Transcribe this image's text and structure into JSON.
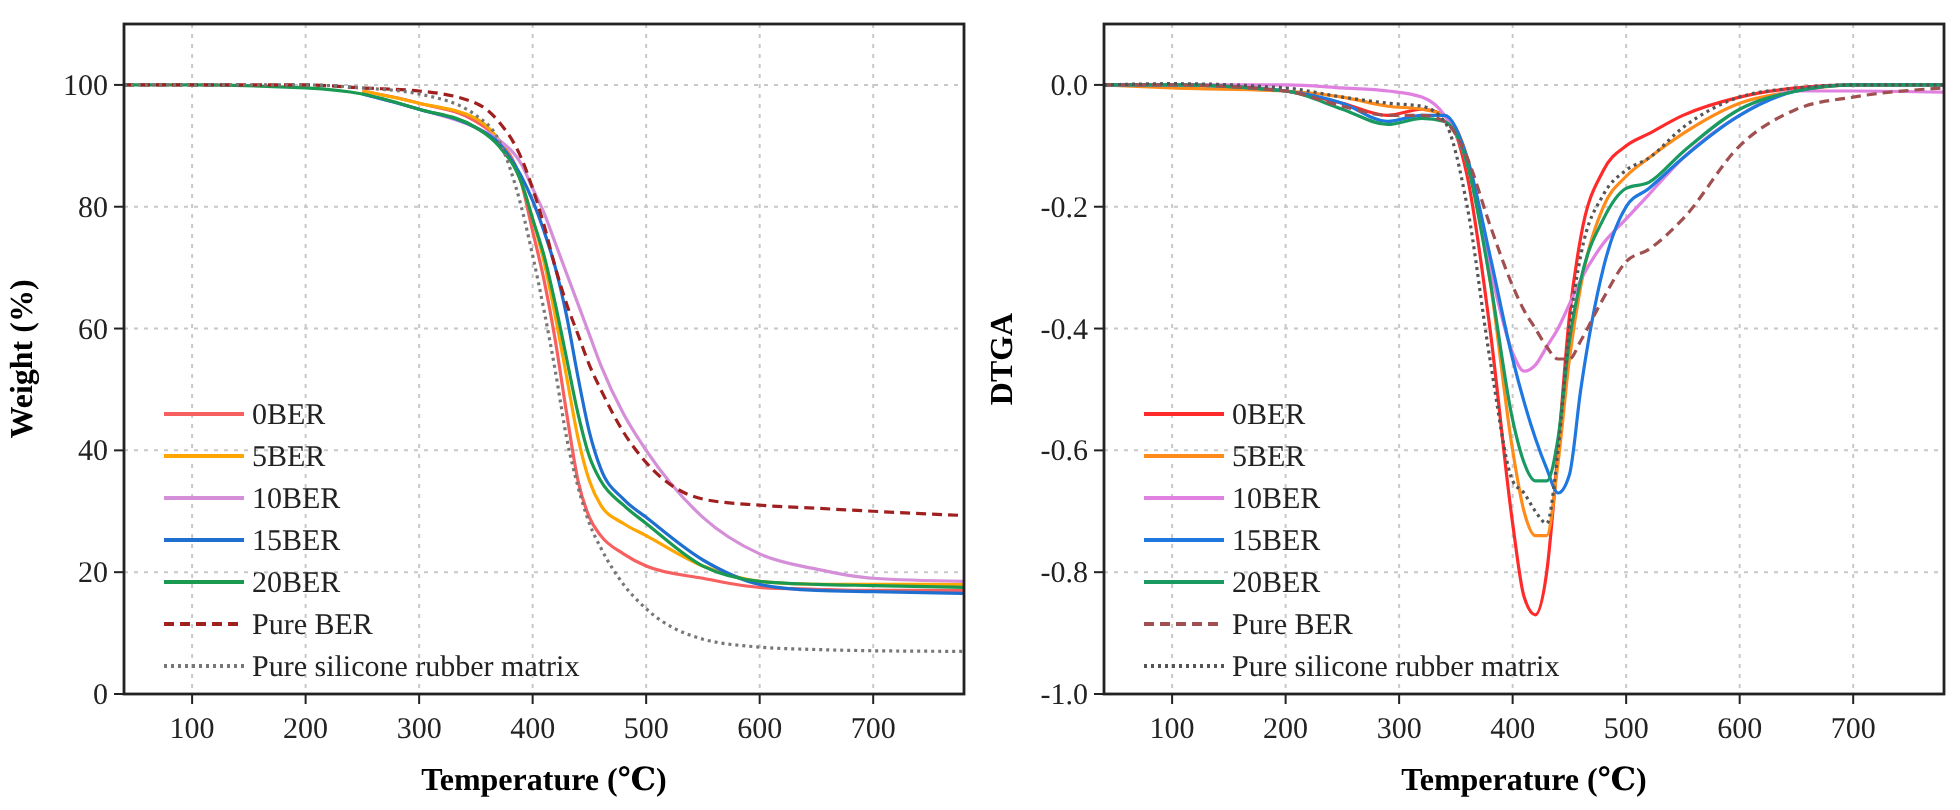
{
  "chart_data": [
    {
      "type": "line",
      "xlabel": "Temperature (℃)",
      "ylabel": "Weight (%)",
      "xlim": [
        40,
        780
      ],
      "ylim": [
        0,
        110
      ],
      "xticks": [
        100,
        200,
        300,
        400,
        500,
        600,
        700
      ],
      "yticks": [
        0,
        20,
        40,
        60,
        80,
        100
      ],
      "grid": true,
      "legend": "bottom left",
      "x": [
        40,
        100,
        200,
        250,
        300,
        350,
        370,
        390,
        400,
        410,
        420,
        430,
        440,
        450,
        460,
        480,
        500,
        550,
        600,
        650,
        700,
        780
      ],
      "series": [
        {
          "name": "0BER",
          "color": "#f86060",
          "line_style": "solid",
          "values": [
            null,
            null,
            null,
            99,
            97,
            94,
            91,
            84,
            76,
            68,
            58,
            46,
            35,
            29,
            26,
            23,
            21,
            19,
            17.5,
            17.2,
            17,
            17
          ]
        },
        {
          "name": "5BER",
          "color": "#ffa500",
          "line_style": "solid",
          "values": [
            null,
            null,
            null,
            99,
            97,
            94.5,
            91,
            84,
            78,
            71,
            62,
            52,
            42,
            35,
            31,
            28,
            26,
            21,
            18.5,
            18,
            18,
            18
          ]
        },
        {
          "name": "10BER",
          "color": "#d58fd8",
          "line_style": "solid",
          "values": [
            null,
            null,
            null,
            98.5,
            96,
            93,
            91,
            87,
            83,
            79,
            74,
            69,
            64,
            59,
            54,
            46,
            40,
            29,
            23,
            20.5,
            19,
            18.5
          ]
        },
        {
          "name": "15BER",
          "color": "#1f6fd0",
          "line_style": "solid",
          "values": [
            null,
            null,
            null,
            98.5,
            96,
            93,
            90.5,
            85,
            81,
            76,
            70,
            62,
            52,
            43,
            37,
            32,
            29,
            22,
            18,
            17,
            16.8,
            16.5
          ]
        },
        {
          "name": "20BER",
          "color": "#1a9a50",
          "line_style": "solid",
          "values": [
            100,
            100,
            99.5,
            98.5,
            96,
            93,
            90,
            84,
            78,
            72,
            64,
            55,
            46,
            39,
            35,
            31,
            28,
            21,
            18.5,
            18,
            17.8,
            17.5
          ]
        },
        {
          "name": "Pure BER",
          "color": "#a02020",
          "line_style": "dashed",
          "values": [
            100,
            100,
            100,
            99.5,
            99,
            97,
            94,
            88,
            83,
            77,
            70,
            64,
            59,
            54,
            50,
            43,
            38,
            32,
            31,
            30.5,
            30,
            29.3
          ]
        },
        {
          "name": "Pure silicone rubber matrix",
          "color": "#777777",
          "line_style": "dotted",
          "values": [
            100,
            100,
            100,
            99.5,
            98.5,
            95,
            91,
            80,
            72,
            63,
            53,
            42,
            34,
            28,
            24,
            18,
            14,
            9,
            7.7,
            7.3,
            7.1,
            7
          ]
        }
      ]
    },
    {
      "type": "line",
      "xlabel": "Temperature (℃)",
      "ylabel": "DTGA",
      "xlim": [
        40,
        780
      ],
      "ylim": [
        -1.0,
        0.1
      ],
      "xticks": [
        100,
        200,
        300,
        400,
        500,
        600,
        700
      ],
      "yticks": [
        {
          "value": -1,
          "label": "-1.0"
        },
        {
          "value": -0.8,
          "label": "-0.8"
        },
        {
          "value": -0.6,
          "label": "-0.6"
        },
        {
          "value": -0.4,
          "label": "-0.4"
        },
        {
          "value": -0.2,
          "label": "-0.2"
        },
        {
          "value": 0,
          "label": "0.0"
        }
      ],
      "grid": true,
      "legend": "bottom left",
      "x": [
        40,
        100,
        200,
        250,
        290,
        320,
        340,
        360,
        380,
        400,
        410,
        420,
        430,
        440,
        450,
        460,
        480,
        500,
        520,
        550,
        600,
        650,
        700,
        780
      ],
      "series": [
        {
          "name": "0BER",
          "color": "#ff2a2a",
          "line_style": "solid",
          "values": [
            null,
            null,
            -0.01,
            -0.03,
            -0.05,
            -0.04,
            -0.05,
            -0.15,
            -0.4,
            -0.72,
            -0.84,
            -0.87,
            -0.8,
            -0.6,
            -0.38,
            -0.25,
            -0.14,
            -0.1,
            -0.08,
            -0.05,
            -0.02,
            -0.005,
            0,
            0
          ]
        },
        {
          "name": "5BER",
          "color": "#ff8c1a",
          "line_style": "solid",
          "values": [
            0,
            -0.005,
            -0.01,
            -0.02,
            -0.035,
            -0.04,
            -0.05,
            -0.12,
            -0.32,
            -0.6,
            -0.7,
            -0.74,
            -0.74,
            -0.62,
            -0.45,
            -0.33,
            -0.2,
            -0.15,
            -0.12,
            -0.08,
            -0.03,
            -0.01,
            0,
            0
          ]
        },
        {
          "name": "10BER",
          "color": "#e080e0",
          "line_style": "solid",
          "values": [
            0,
            0,
            0,
            -0.005,
            -0.01,
            -0.02,
            -0.05,
            -0.13,
            -0.3,
            -0.44,
            -0.47,
            -0.46,
            -0.43,
            -0.4,
            -0.36,
            -0.32,
            -0.26,
            -0.22,
            -0.18,
            -0.12,
            -0.05,
            -0.01,
            -0.01,
            -0.012
          ]
        },
        {
          "name": "15BER",
          "color": "#1f78e0",
          "line_style": "solid",
          "values": [
            0,
            0,
            -0.01,
            -0.03,
            -0.06,
            -0.05,
            -0.05,
            -0.12,
            -0.28,
            -0.45,
            -0.52,
            -0.58,
            -0.63,
            -0.67,
            -0.64,
            -0.5,
            -0.3,
            -0.2,
            -0.17,
            -0.12,
            -0.05,
            -0.01,
            0,
            0
          ]
        },
        {
          "name": "20BER",
          "color": "#1a9a60",
          "line_style": "solid",
          "values": [
            0,
            0,
            -0.01,
            -0.04,
            -0.065,
            -0.055,
            -0.06,
            -0.13,
            -0.32,
            -0.55,
            -0.62,
            -0.65,
            -0.65,
            -0.58,
            -0.42,
            -0.32,
            -0.22,
            -0.17,
            -0.16,
            -0.11,
            -0.04,
            -0.01,
            0,
            0
          ]
        },
        {
          "name": "Pure BER",
          "color": "#a05050",
          "line_style": "dashed",
          "values": [
            0,
            0,
            -0.01,
            -0.035,
            -0.05,
            -0.05,
            -0.06,
            -0.12,
            -0.23,
            -0.33,
            -0.37,
            -0.4,
            -0.43,
            -0.45,
            -0.45,
            -0.42,
            -0.35,
            -0.29,
            -0.27,
            -0.22,
            -0.1,
            -0.04,
            -0.02,
            -0.005
          ]
        },
        {
          "name": "Pure silicone rubber matrix",
          "color": "#555555",
          "line_style": "dotted",
          "values": [
            0,
            0.002,
            -0.005,
            -0.02,
            -0.03,
            -0.035,
            -0.06,
            -0.2,
            -0.45,
            -0.65,
            -0.67,
            -0.7,
            -0.72,
            -0.6,
            -0.4,
            -0.28,
            -0.18,
            -0.14,
            -0.12,
            -0.07,
            -0.02,
            -0.005,
            0,
            0
          ]
        }
      ]
    }
  ]
}
